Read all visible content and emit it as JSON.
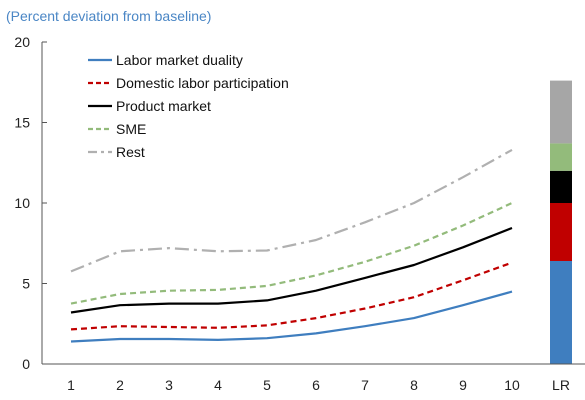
{
  "chart_data": {
    "type": "line",
    "subtitle": "(Percent deviation from baseline)",
    "x": [
      1,
      2,
      3,
      4,
      5,
      6,
      7,
      8,
      9,
      10
    ],
    "x_tick_labels": [
      "1",
      "2",
      "3",
      "4",
      "5",
      "6",
      "7",
      "8",
      "9",
      "10",
      "LR"
    ],
    "ylim": [
      0,
      20
    ],
    "y_ticks": [
      0,
      5,
      10,
      15,
      20
    ],
    "grid": false,
    "legend_position": "top-left",
    "series": [
      {
        "name": "Labor market duality",
        "color": "#3f7ebf",
        "style": "solid",
        "values": [
          1.4,
          1.55,
          1.55,
          1.5,
          1.6,
          1.9,
          2.35,
          2.85,
          3.65,
          4.5
        ]
      },
      {
        "name": "Domestic labor participation",
        "color": "#c00000",
        "style": "dashed",
        "values": [
          2.15,
          2.35,
          2.3,
          2.25,
          2.4,
          2.85,
          3.45,
          4.15,
          5.2,
          6.3
        ]
      },
      {
        "name": "Product market",
        "color": "#000000",
        "style": "solid",
        "values": [
          3.2,
          3.65,
          3.75,
          3.75,
          3.95,
          4.55,
          5.35,
          6.15,
          7.25,
          8.45
        ]
      },
      {
        "name": "SME",
        "color": "#93bb7b",
        "style": "dashed",
        "values": [
          3.75,
          4.35,
          4.55,
          4.6,
          4.85,
          5.5,
          6.35,
          7.35,
          8.6,
          10.0
        ]
      },
      {
        "name": "Rest",
        "color": "#b0b0b0",
        "style": "dashdot",
        "values": [
          5.75,
          7.0,
          7.2,
          7.0,
          7.05,
          7.7,
          8.8,
          10.0,
          11.6,
          13.3
        ]
      }
    ],
    "long_run_bar": {
      "label": "LR",
      "segments": [
        {
          "name": "Labor market duality",
          "color": "#3f7ebf",
          "value": 6.4
        },
        {
          "name": "Domestic labor participation",
          "color": "#c00000",
          "value": 3.6
        },
        {
          "name": "Product market",
          "color": "#000000",
          "value": 2.0
        },
        {
          "name": "SME",
          "color": "#93bb7b",
          "value": 1.7
        },
        {
          "name": "Rest",
          "color": "#a6a6a6",
          "value": 3.9
        }
      ]
    }
  }
}
